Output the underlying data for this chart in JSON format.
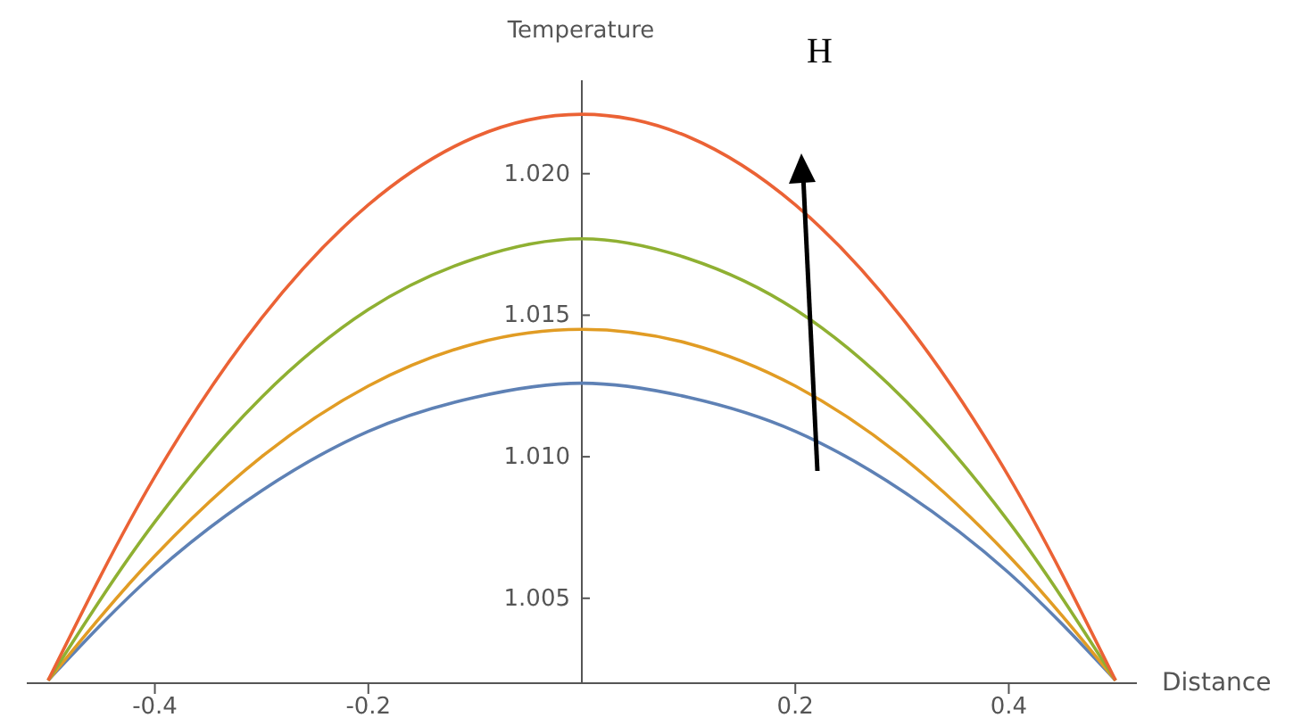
{
  "chart_data": {
    "type": "line",
    "xlabel": "Distance",
    "ylabel": "Temperature",
    "annotations": [
      "H"
    ],
    "x": [
      -0.5,
      -0.4,
      -0.3,
      -0.2,
      -0.1,
      0,
      0.1,
      0.2,
      0.3,
      0.4,
      0.5
    ],
    "series": [
      {
        "color": "#5e81b5",
        "values": [
          1.0021,
          1.0059,
          1.0088,
          1.0109,
          1.0121,
          1.0126,
          1.0121,
          1.0109,
          1.0088,
          1.0059,
          1.0021
        ]
      },
      {
        "color": "#e19c24",
        "values": [
          1.0021,
          1.0065,
          1.01,
          1.0125,
          1.014,
          1.0145,
          1.014,
          1.0125,
          1.01,
          1.0065,
          1.0021
        ]
      },
      {
        "color": "#8fb032",
        "values": [
          1.0021,
          1.0077,
          1.0121,
          1.0152,
          1.017,
          1.0177,
          1.017,
          1.0152,
          1.0121,
          1.0077,
          1.0021
        ]
      },
      {
        "color": "#eb6235",
        "values": [
          1.0021,
          1.0093,
          1.0149,
          1.0189,
          1.0213,
          1.0221,
          1.0213,
          1.0189,
          1.0149,
          1.0093,
          1.0021
        ]
      }
    ],
    "xlim": [
      -0.52,
      0.52
    ],
    "ylim": [
      1.002,
      1.0233
    ],
    "xticks": [
      -0.4,
      -0.2,
      0.2,
      0.4
    ],
    "yticks": [
      {
        "value": 1.005,
        "label": "1.005"
      },
      {
        "value": 1.01,
        "label": "1.010"
      },
      {
        "value": 1.015,
        "label": "1.015"
      },
      {
        "value": 1.02,
        "label": "1.020"
      }
    ],
    "grid": false,
    "legend": false,
    "marker": "none",
    "line_style": "solid"
  }
}
